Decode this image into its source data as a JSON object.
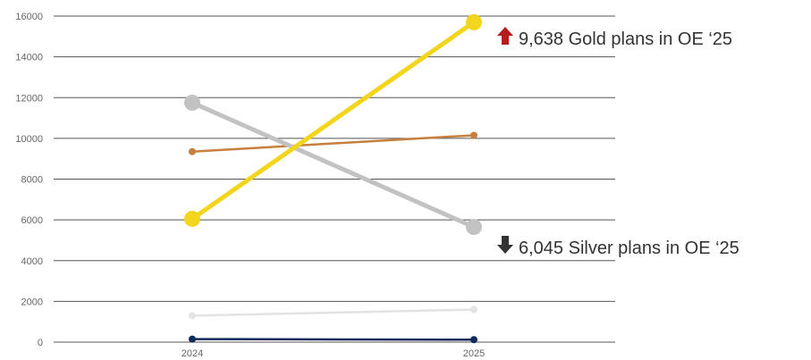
{
  "chart_data": {
    "type": "line",
    "categories": [
      "2024",
      "2025"
    ],
    "ylim": [
      0,
      16000
    ],
    "yticks": [
      0,
      2000,
      4000,
      6000,
      8000,
      10000,
      12000,
      14000,
      16000
    ],
    "grid": true,
    "series": [
      {
        "color": "#f2d51c",
        "values": [
          6050,
          15700
        ],
        "weight": "thick"
      },
      {
        "color": "#c2c2c2",
        "values": [
          11750,
          5650
        ],
        "weight": "thick"
      },
      {
        "color": "#c77f3e",
        "values": [
          9350,
          10150
        ],
        "weight": "thin"
      },
      {
        "color": "#e3e3e3",
        "values": [
          1300,
          1600
        ],
        "weight": "thin"
      },
      {
        "color": "#102a5c",
        "values": [
          150,
          120
        ],
        "weight": "thin"
      }
    ],
    "annotations": [
      {
        "arrow": "up",
        "arrow_color": "#b71c1c",
        "text": "9,638 Gold plans in OE ‘25"
      },
      {
        "arrow": "down",
        "arrow_color": "#333333",
        "text": "6,045 Silver plans in OE ‘25"
      }
    ]
  }
}
